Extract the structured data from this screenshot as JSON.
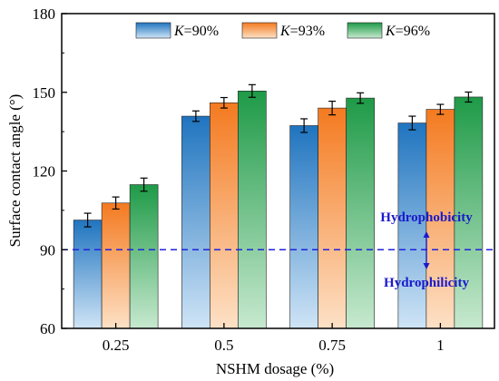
{
  "chart_data": {
    "type": "bar",
    "title": "",
    "xlabel": "NSHM dosage (%)",
    "ylabel": "Surface contact angle (°)",
    "ylim": [
      60,
      180
    ],
    "yticks": [
      60,
      90,
      120,
      150,
      180
    ],
    "categories": [
      "0.25",
      "0.5",
      "0.75",
      "1"
    ],
    "grid": false,
    "legend_position": "top",
    "series": [
      {
        "name_prefix": "K",
        "name_suffix": "=90%",
        "values": [
          101.3,
          140.9,
          137.3,
          138.3
        ],
        "errors": [
          2.6,
          2.0,
          2.6,
          2.6
        ],
        "color_dark": "#1f74bf",
        "color_light": "#cfe4f6"
      },
      {
        "name_prefix": "K",
        "name_suffix": "=93%",
        "values": [
          107.8,
          146.0,
          144.0,
          143.5
        ],
        "errors": [
          2.3,
          2.0,
          2.6,
          1.9
        ],
        "color_dark": "#f47a20",
        "color_light": "#fde1c6"
      },
      {
        "name_prefix": "K",
        "name_suffix": "=96%",
        "values": [
          114.8,
          150.5,
          147.8,
          148.2
        ],
        "errors": [
          2.5,
          2.4,
          2.0,
          1.9
        ],
        "color_dark": "#1e9a47",
        "color_light": "#c7e9cf"
      }
    ],
    "reference_line": {
      "y": 90,
      "color": "#2222dd"
    },
    "annotations": {
      "upper": "Hydrophobicity",
      "lower": "Hydrophilicity",
      "color": "#1a1acc"
    }
  }
}
